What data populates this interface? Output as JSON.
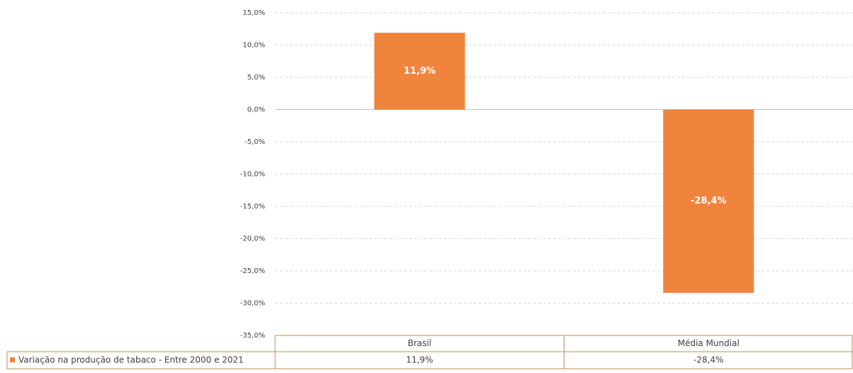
{
  "chart_data": {
    "type": "bar",
    "categories": [
      "Brasil",
      "Média Mundial"
    ],
    "series": [
      {
        "name": "Variação na produção de tabaco - Entre 2000 e 2021",
        "color": "#f0843c",
        "values": [
          11.9,
          -28.4
        ],
        "value_labels": [
          "11,9%",
          "-28,4%"
        ]
      }
    ],
    "ylim": [
      -35,
      15
    ],
    "yticks": [
      {
        "value": 15,
        "label": "15,0%"
      },
      {
        "value": 10,
        "label": "10,0%"
      },
      {
        "value": 5,
        "label": "5,0%"
      },
      {
        "value": 0,
        "label": "0,0%"
      },
      {
        "value": -5,
        "label": "-5,0%"
      },
      {
        "value": -10,
        "label": "-10,0%"
      },
      {
        "value": -15,
        "label": "-15,0%"
      },
      {
        "value": -20,
        "label": "-20,0%"
      },
      {
        "value": -25,
        "label": "-25,0%"
      },
      {
        "value": -30,
        "label": "-30,0%"
      },
      {
        "value": -35,
        "label": "-35,0%"
      }
    ],
    "grid": true,
    "data_table": true
  }
}
